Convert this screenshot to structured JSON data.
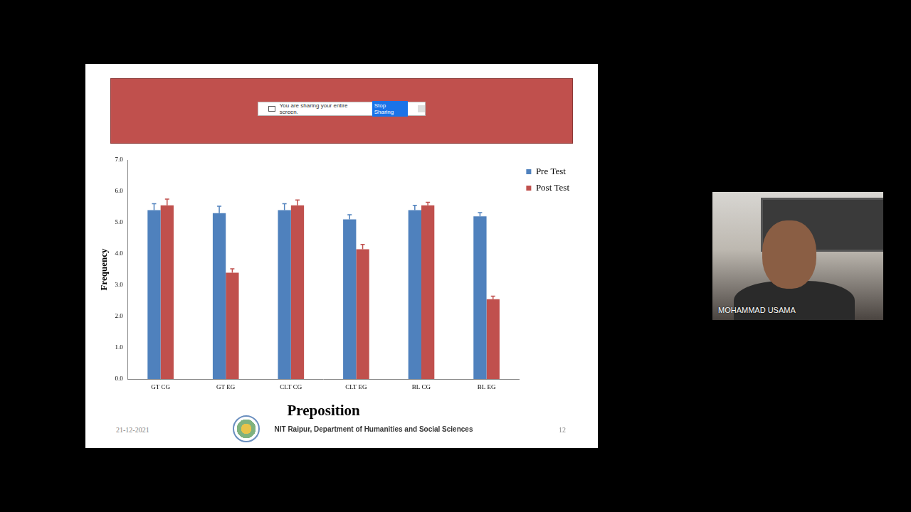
{
  "chart_data": {
    "type": "bar",
    "x_label": "Preposition",
    "y_label": "Frequency",
    "categories": [
      "GT CG",
      "GT EG",
      "CLT CG",
      "CLT EG",
      "BL CG",
      "BL EG"
    ],
    "series": [
      {
        "name": "Pre Test",
        "color": "#4f81bd",
        "values": [
          5.4,
          5.3,
          5.4,
          5.1,
          5.4,
          5.2
        ],
        "errors": [
          0.2,
          0.22,
          0.2,
          0.15,
          0.15,
          0.12
        ]
      },
      {
        "name": "Post Test",
        "color": "#c0504d",
        "values": [
          5.55,
          3.4,
          5.55,
          4.15,
          5.55,
          2.55
        ],
        "errors": [
          0.2,
          0.12,
          0.17,
          0.15,
          0.1,
          0.1
        ]
      }
    ],
    "ylim": [
      0,
      7
    ],
    "yticks": [
      {
        "value": 0,
        "label": "0.0"
      },
      {
        "value": 1,
        "label": "1.0"
      },
      {
        "value": 2,
        "label": "2.0"
      },
      {
        "value": 3,
        "label": "3.0"
      },
      {
        "value": 4,
        "label": "4.0"
      },
      {
        "value": 5,
        "label": "5.0"
      },
      {
        "value": 6,
        "label": "6.0"
      },
      {
        "value": 7,
        "label": "7.0"
      }
    ],
    "grid": false,
    "legend": "right"
  },
  "share_banner": {
    "message": "You are sharing your entire screen.",
    "button": "Stop Sharing"
  },
  "footer": {
    "date": "21-12-2021",
    "organization": "NIT Raipur, Department of Humanities and Social Sciences",
    "page": "12"
  },
  "participant": {
    "label": "MOHAMMAD USAMA"
  }
}
